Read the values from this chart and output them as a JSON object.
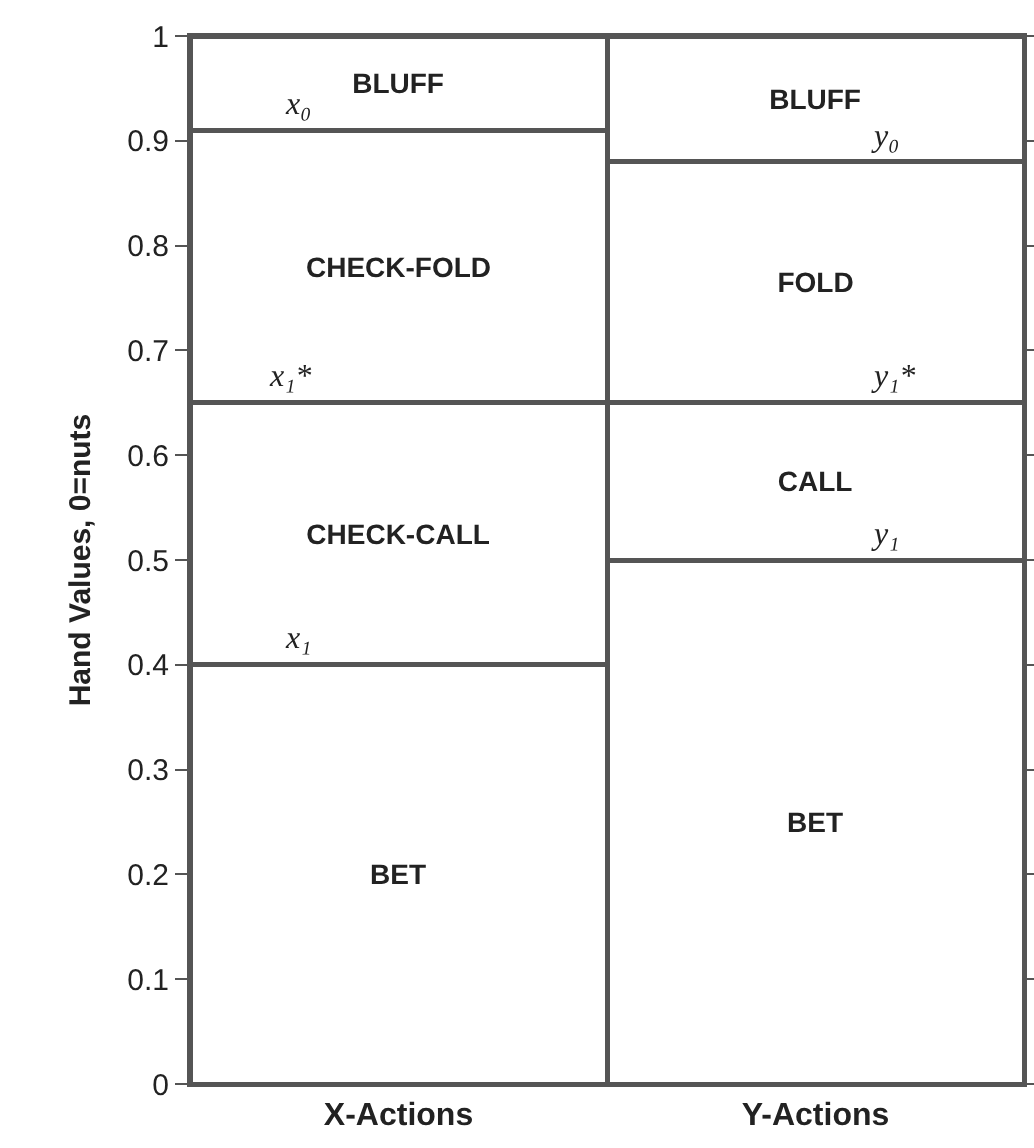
{
  "chart_data": {
    "type": "bar",
    "stacked": true,
    "ylabel": "Hand Values, 0=nuts",
    "categories": [
      "X-Actions",
      "Y-Actions"
    ],
    "series": [
      {
        "color": "#ffffff",
        "values": [
          0.4,
          0.5
        ],
        "value_labels": [
          "BET",
          "BET"
        ]
      },
      {
        "color": "#ffffff",
        "values": [
          0.25,
          0.15
        ],
        "value_labels": [
          "CHECK-CALL",
          "CALL"
        ]
      },
      {
        "color": "#ffffff",
        "values": [
          0.26,
          0.23
        ],
        "value_labels": [
          "CHECK-FOLD",
          "FOLD"
        ]
      },
      {
        "color": "#ffffff",
        "values": [
          0.09,
          0.12
        ],
        "value_labels": [
          "BLUFF",
          "BLUFF"
        ]
      }
    ],
    "ylim": [
      0,
      1
    ],
    "yticks": [
      0,
      0.1,
      0.2,
      0.3,
      0.4,
      0.5,
      0.6,
      0.7,
      0.8,
      0.9,
      1
    ],
    "annotations": [
      {
        "text": "x₀",
        "x": "X-Actions",
        "y": 0.91
      },
      {
        "text": "x₁*",
        "x": "X-Actions",
        "y": 0.65
      },
      {
        "text": "x₁",
        "x": "X-Actions",
        "y": 0.4
      },
      {
        "text": "y₀",
        "x": "Y-Actions",
        "y": 0.88
      },
      {
        "text": "y₁*",
        "x": "Y-Actions",
        "y": 0.65
      },
      {
        "text": "y₁",
        "x": "Y-Actions",
        "y": 0.5
      }
    ]
  }
}
